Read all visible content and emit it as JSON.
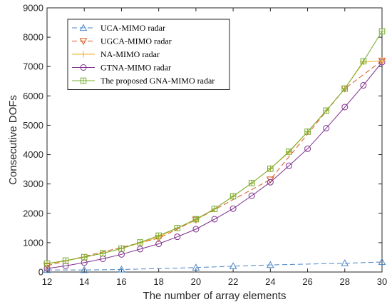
{
  "chart_data": {
    "type": "line",
    "xlabel": "The number of array elements",
    "ylabel": "Consecutive DOFs",
    "xlim": [
      12,
      30
    ],
    "ylim": [
      0,
      9000
    ],
    "x_ticks": [
      "12",
      "14",
      "16",
      "18",
      "20",
      "22",
      "24",
      "26",
      "28",
      "30"
    ],
    "y_ticks": [
      "0",
      "1000",
      "2000",
      "3000",
      "4000",
      "5000",
      "6000",
      "7000",
      "8000",
      "9000"
    ],
    "legend_position": "top-left",
    "grid": false,
    "series": [
      {
        "name": "UCA-MIMO radar",
        "color": "#4a86c6",
        "line_style": "dashed",
        "marker": "triangle",
        "x": [
          12,
          14,
          16,
          20,
          22,
          24,
          28,
          30
        ],
        "y": [
          70,
          70,
          85,
          150,
          200,
          240,
          300,
          340
        ]
      },
      {
        "name": "UGCA-MIMO radar",
        "color": "#d9541e",
        "line_style": "dashed",
        "marker": "triangle-down",
        "x": [
          12,
          18,
          20,
          24,
          28,
          30
        ],
        "y": [
          220,
          1150,
          1780,
          3150,
          6250,
          7200
        ]
      },
      {
        "name": "NA-MIMO radar",
        "color": "#edb120",
        "line_style": "solid",
        "marker": "plus",
        "x": [
          12,
          13,
          14,
          15,
          16,
          17,
          18,
          19,
          20,
          21,
          22,
          23,
          24,
          25,
          26,
          27,
          28,
          29,
          30
        ],
        "y": [
          280,
          380,
          500,
          640,
          800,
          990,
          1200,
          1500,
          1780,
          2150,
          2580,
          3030,
          3520,
          4080,
          4780,
          5500,
          6250,
          7150,
          7200
        ]
      },
      {
        "name": "GTNA-MIMO radar",
        "color": "#7e2f8e",
        "line_style": "solid",
        "marker": "circle",
        "x": [
          12,
          13,
          14,
          15,
          16,
          17,
          18,
          19,
          20,
          21,
          22,
          23,
          24,
          25,
          26,
          27,
          28,
          29,
          30
        ],
        "y": [
          120,
          210,
          320,
          450,
          600,
          780,
          960,
          1200,
          1460,
          1800,
          2160,
          2600,
          3060,
          3620,
          4200,
          4900,
          5620,
          6360,
          7150
        ]
      },
      {
        "name": "The proposed GNA-MIMO radar",
        "color": "#77ac30",
        "line_style": "solid",
        "marker": "square",
        "x": [
          12,
          13,
          14,
          15,
          16,
          17,
          18,
          19,
          20,
          21,
          22,
          23,
          24,
          25,
          26,
          27,
          28,
          29,
          30
        ],
        "y": [
          290,
          390,
          510,
          640,
          800,
          1010,
          1240,
          1500,
          1800,
          2150,
          2580,
          3030,
          3520,
          4100,
          4780,
          5500,
          6250,
          7180,
          8200
        ]
      }
    ]
  }
}
